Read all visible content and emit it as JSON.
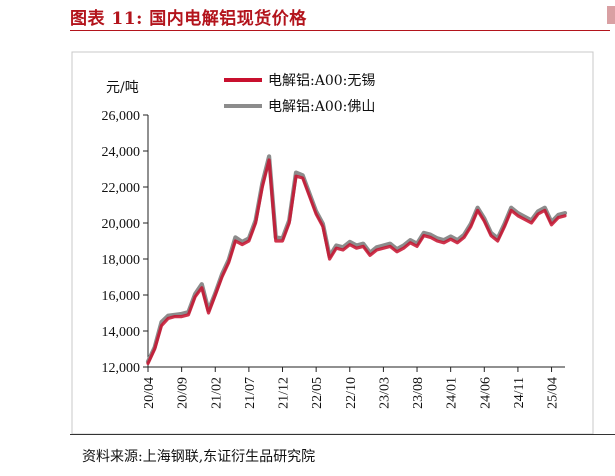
{
  "header": {
    "title": "图表 11:  国内电解铝现货价格"
  },
  "footer": {
    "source": "资料来源:上海钢联,东证衍生品研究院"
  },
  "chart_data": {
    "type": "line",
    "ylabel": "元/吨",
    "ylim": [
      12000,
      26000
    ],
    "yticks": [
      12000,
      14000,
      16000,
      18000,
      20000,
      22000,
      24000,
      26000
    ],
    "ytick_labels": [
      "12,000",
      "14,000",
      "16,000",
      "18,000",
      "20,000",
      "22,000",
      "24,000",
      "26,000"
    ],
    "xlim": [
      "2020-04",
      "2025-06"
    ],
    "xticks": [
      "20/04",
      "20/09",
      "21/02",
      "21/07",
      "21/12",
      "22/05",
      "22/10",
      "23/03",
      "23/08",
      "24/01",
      "24/06",
      "24/11",
      "25/04"
    ],
    "legend_position": "top-center",
    "series": [
      {
        "name": "电解铝:A00:无锡",
        "color": "#c8102e",
        "x": [
          "2020-04",
          "2020-05",
          "2020-06",
          "2020-07",
          "2020-08",
          "2020-09",
          "2020-10",
          "2020-11",
          "2020-12",
          "2021-01",
          "2021-02",
          "2021-03",
          "2021-04",
          "2021-05",
          "2021-06",
          "2021-07",
          "2021-08",
          "2021-09",
          "2021-10",
          "2021-11",
          "2021-12",
          "2022-01",
          "2022-02",
          "2022-03",
          "2022-04",
          "2022-05",
          "2022-06",
          "2022-07",
          "2022-08",
          "2022-09",
          "2022-10",
          "2022-11",
          "2022-12",
          "2023-01",
          "2023-02",
          "2023-03",
          "2023-04",
          "2023-05",
          "2023-06",
          "2023-07",
          "2023-08",
          "2023-09",
          "2023-10",
          "2023-11",
          "2023-12",
          "2024-01",
          "2024-02",
          "2024-03",
          "2024-04",
          "2024-05",
          "2024-06",
          "2024-07",
          "2024-08",
          "2024-09",
          "2024-10",
          "2024-11",
          "2024-12",
          "2025-01",
          "2025-02",
          "2025-03",
          "2025-04",
          "2025-05",
          "2025-06"
        ],
        "values": [
          12200,
          13000,
          14300,
          14700,
          14800,
          14800,
          14900,
          15900,
          16400,
          15000,
          16000,
          17000,
          17800,
          19000,
          18800,
          19000,
          20000,
          22000,
          23500,
          19000,
          19000,
          20000,
          22600,
          22500,
          21500,
          20500,
          19800,
          18000,
          18600,
          18500,
          18800,
          18600,
          18700,
          18200,
          18500,
          18600,
          18700,
          18400,
          18600,
          18900,
          18700,
          19300,
          19200,
          19000,
          18900,
          19100,
          18900,
          19200,
          19800,
          20700,
          20100,
          19300,
          19000,
          19800,
          20700,
          20400,
          20200,
          20000,
          20500,
          20700,
          19900,
          20300,
          20400
        ]
      },
      {
        "name": "电解铝:A00:佛山",
        "color": "#8c8c8c",
        "x": [
          "2020-04",
          "2020-05",
          "2020-06",
          "2020-07",
          "2020-08",
          "2020-09",
          "2020-10",
          "2020-11",
          "2020-12",
          "2021-01",
          "2021-02",
          "2021-03",
          "2021-04",
          "2021-05",
          "2021-06",
          "2021-07",
          "2021-08",
          "2021-09",
          "2021-10",
          "2021-11",
          "2021-12",
          "2022-01",
          "2022-02",
          "2022-03",
          "2022-04",
          "2022-05",
          "2022-06",
          "2022-07",
          "2022-08",
          "2022-09",
          "2022-10",
          "2022-11",
          "2022-12",
          "2023-01",
          "2023-02",
          "2023-03",
          "2023-04",
          "2023-05",
          "2023-06",
          "2023-07",
          "2023-08",
          "2023-09",
          "2023-10",
          "2023-11",
          "2023-12",
          "2024-01",
          "2024-02",
          "2024-03",
          "2024-04",
          "2024-05",
          "2024-06",
          "2024-07",
          "2024-08",
          "2024-09",
          "2024-10",
          "2024-11",
          "2024-12",
          "2025-01",
          "2025-02",
          "2025-03",
          "2025-04",
          "2025-05",
          "2025-06"
        ],
        "values": [
          12300,
          13100,
          14500,
          14850,
          14900,
          14950,
          15050,
          16050,
          16600,
          15150,
          16100,
          17150,
          17950,
          19200,
          18950,
          19150,
          20150,
          22200,
          23700,
          19200,
          19150,
          20150,
          22800,
          22650,
          21650,
          20650,
          19950,
          18150,
          18750,
          18650,
          18950,
          18750,
          18850,
          18350,
          18650,
          18750,
          18850,
          18550,
          18750,
          19050,
          18850,
          19450,
          19350,
          19150,
          19050,
          19250,
          19050,
          19350,
          19950,
          20850,
          20250,
          19450,
          19150,
          19950,
          20850,
          20550,
          20350,
          20150,
          20650,
          20850,
          20050,
          20450,
          20550
        ]
      }
    ]
  }
}
